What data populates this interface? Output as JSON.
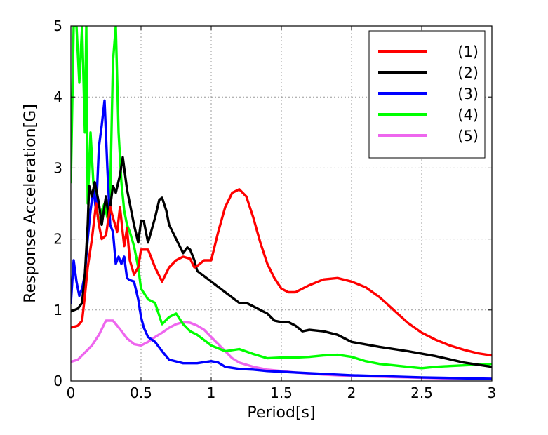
{
  "chart_data": {
    "type": "line",
    "title": "",
    "xlabel": "Period[s]",
    "ylabel": "Response Acceleration[G]",
    "xlim": [
      0,
      3
    ],
    "ylim": [
      0,
      5
    ],
    "xticks": [
      0,
      0.5,
      1,
      1.5,
      2,
      2.5,
      3
    ],
    "xtick_labels": [
      "0",
      "0.5",
      "1",
      "1.5",
      "2",
      "2.5",
      "3"
    ],
    "yticks": [
      0,
      1,
      2,
      3,
      4,
      5
    ],
    "ytick_labels": [
      "0",
      "1",
      "2",
      "3",
      "4",
      "5"
    ],
    "grid": true,
    "legend_position": "top-right",
    "series": [
      {
        "name": "(1)",
        "color": "#ff0000",
        "x": [
          0,
          0.05,
          0.08,
          0.1,
          0.12,
          0.15,
          0.18,
          0.2,
          0.22,
          0.25,
          0.28,
          0.3,
          0.33,
          0.35,
          0.38,
          0.4,
          0.42,
          0.45,
          0.48,
          0.5,
          0.55,
          0.6,
          0.65,
          0.7,
          0.75,
          0.8,
          0.85,
          0.88,
          0.9,
          0.95,
          1.0,
          1.05,
          1.1,
          1.15,
          1.2,
          1.25,
          1.3,
          1.35,
          1.4,
          1.45,
          1.5,
          1.55,
          1.6,
          1.7,
          1.8,
          1.9,
          2.0,
          2.1,
          2.2,
          2.3,
          2.4,
          2.5,
          2.6,
          2.7,
          2.8,
          2.9,
          3.0
        ],
        "values": [
          0.75,
          0.78,
          0.85,
          1.2,
          1.6,
          2.0,
          2.5,
          2.2,
          2.0,
          2.05,
          2.45,
          2.3,
          2.1,
          2.45,
          1.9,
          2.15,
          1.7,
          1.5,
          1.6,
          1.85,
          1.85,
          1.6,
          1.4,
          1.6,
          1.7,
          1.75,
          1.72,
          1.6,
          1.62,
          1.7,
          1.7,
          2.1,
          2.45,
          2.65,
          2.7,
          2.6,
          2.3,
          1.95,
          1.65,
          1.45,
          1.3,
          1.25,
          1.25,
          1.35,
          1.43,
          1.45,
          1.4,
          1.32,
          1.18,
          1.0,
          0.82,
          0.68,
          0.58,
          0.5,
          0.44,
          0.39,
          0.36
        ]
      },
      {
        "name": "(2)",
        "color": "#000000",
        "x": [
          0,
          0.05,
          0.08,
          0.1,
          0.12,
          0.13,
          0.15,
          0.17,
          0.2,
          0.22,
          0.25,
          0.27,
          0.3,
          0.32,
          0.35,
          0.37,
          0.4,
          0.45,
          0.48,
          0.5,
          0.52,
          0.55,
          0.6,
          0.63,
          0.65,
          0.68,
          0.7,
          0.75,
          0.8,
          0.83,
          0.85,
          0.88,
          0.9,
          1.0,
          1.1,
          1.2,
          1.25,
          1.3,
          1.4,
          1.45,
          1.5,
          1.55,
          1.6,
          1.65,
          1.7,
          1.8,
          1.9,
          2.0,
          2.2,
          2.4,
          2.6,
          2.8,
          3.0
        ],
        "values": [
          0.98,
          1.02,
          1.1,
          1.5,
          2.2,
          2.75,
          2.6,
          2.8,
          2.5,
          2.2,
          2.6,
          2.3,
          2.75,
          2.65,
          2.9,
          3.15,
          2.7,
          2.2,
          1.95,
          2.25,
          2.25,
          1.95,
          2.3,
          2.55,
          2.58,
          2.4,
          2.2,
          2.0,
          1.8,
          1.88,
          1.85,
          1.7,
          1.55,
          1.4,
          1.25,
          1.1,
          1.1,
          1.05,
          0.95,
          0.85,
          0.83,
          0.83,
          0.78,
          0.7,
          0.72,
          0.7,
          0.65,
          0.55,
          0.48,
          0.42,
          0.35,
          0.26,
          0.2
        ]
      },
      {
        "name": "(3)",
        "color": "#0000ff",
        "x": [
          0,
          0.02,
          0.04,
          0.06,
          0.08,
          0.1,
          0.12,
          0.14,
          0.16,
          0.18,
          0.2,
          0.22,
          0.24,
          0.26,
          0.28,
          0.3,
          0.32,
          0.34,
          0.36,
          0.38,
          0.4,
          0.42,
          0.45,
          0.48,
          0.5,
          0.52,
          0.55,
          0.6,
          0.65,
          0.7,
          0.8,
          0.9,
          1.0,
          1.05,
          1.1,
          1.2,
          1.3,
          1.4,
          1.6,
          1.8,
          2.0,
          2.5,
          3.0
        ],
        "values": [
          1.1,
          1.7,
          1.4,
          1.2,
          1.3,
          1.5,
          2.0,
          2.4,
          2.7,
          2.4,
          3.3,
          3.6,
          3.95,
          3.0,
          2.2,
          2.1,
          1.65,
          1.75,
          1.65,
          1.75,
          1.45,
          1.42,
          1.4,
          1.15,
          0.9,
          0.75,
          0.62,
          0.55,
          0.42,
          0.3,
          0.25,
          0.25,
          0.28,
          0.26,
          0.2,
          0.17,
          0.16,
          0.14,
          0.12,
          0.1,
          0.08,
          0.05,
          0.03
        ]
      },
      {
        "name": "(4)",
        "color": "#00ff00",
        "x": [
          0,
          0.02,
          0.04,
          0.06,
          0.08,
          0.1,
          0.11,
          0.12,
          0.13,
          0.14,
          0.16,
          0.18,
          0.2,
          0.22,
          0.24,
          0.26,
          0.28,
          0.3,
          0.32,
          0.34,
          0.36,
          0.38,
          0.4,
          0.42,
          0.45,
          0.48,
          0.5,
          0.55,
          0.6,
          0.65,
          0.7,
          0.75,
          0.8,
          0.85,
          0.9,
          1.0,
          1.1,
          1.2,
          1.3,
          1.4,
          1.5,
          1.6,
          1.7,
          1.8,
          1.9,
          2.0,
          2.1,
          2.2,
          2.3,
          2.4,
          2.5,
          2.6,
          2.7,
          2.8,
          2.9,
          3.0
        ],
        "values": [
          2.8,
          5.0,
          5.0,
          4.2,
          5.0,
          3.5,
          5.0,
          2.5,
          3.0,
          3.5,
          2.8,
          2.5,
          2.2,
          2.4,
          2.5,
          2.3,
          2.6,
          4.5,
          5.0,
          3.5,
          2.8,
          2.4,
          2.2,
          2.1,
          1.9,
          1.6,
          1.3,
          1.15,
          1.1,
          0.8,
          0.9,
          0.95,
          0.8,
          0.7,
          0.65,
          0.5,
          0.42,
          0.45,
          0.38,
          0.32,
          0.33,
          0.33,
          0.34,
          0.36,
          0.37,
          0.34,
          0.28,
          0.24,
          0.22,
          0.2,
          0.18,
          0.2,
          0.21,
          0.22,
          0.23,
          0.24
        ]
      },
      {
        "name": "(5)",
        "color": "#ee66ee",
        "x": [
          0,
          0.05,
          0.1,
          0.15,
          0.2,
          0.25,
          0.3,
          0.35,
          0.4,
          0.45,
          0.5,
          0.55,
          0.6,
          0.65,
          0.7,
          0.75,
          0.8,
          0.85,
          0.9,
          0.95,
          1.0,
          1.05,
          1.1,
          1.15,
          1.2,
          1.3,
          1.4,
          1.5,
          1.6,
          1.8,
          2.0,
          2.2,
          2.4,
          2.6,
          2.8,
          3.0
        ],
        "values": [
          0.27,
          0.3,
          0.4,
          0.5,
          0.65,
          0.85,
          0.85,
          0.73,
          0.6,
          0.52,
          0.5,
          0.55,
          0.62,
          0.68,
          0.75,
          0.8,
          0.83,
          0.82,
          0.78,
          0.72,
          0.62,
          0.52,
          0.42,
          0.32,
          0.26,
          0.2,
          0.16,
          0.14,
          0.12,
          0.09,
          0.07,
          0.06,
          0.05,
          0.04,
          0.03,
          0.03
        ]
      }
    ]
  }
}
